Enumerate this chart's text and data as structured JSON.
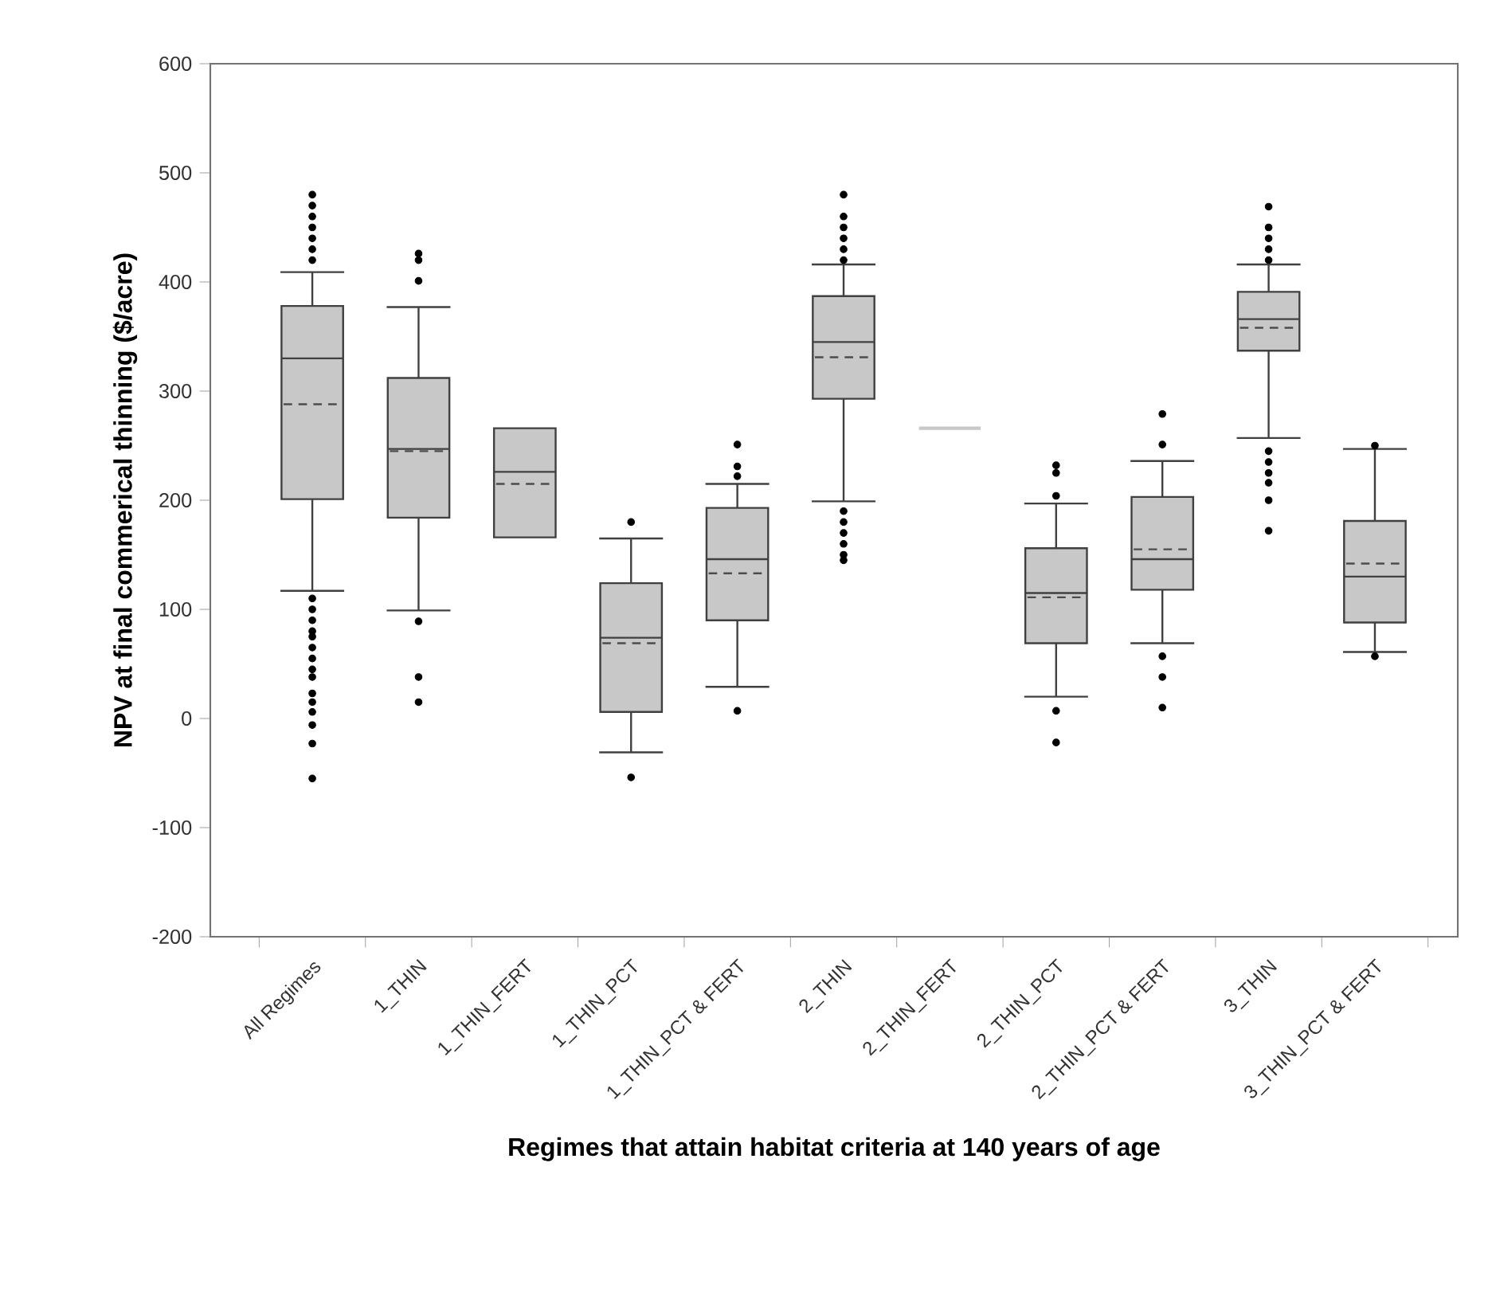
{
  "chart_data": {
    "type": "box",
    "xlabel": "Regimes that attain habitat criteria at 140 years of age",
    "ylabel": "NPV at final commerical thinning ($/acre)",
    "categories": [
      "All Regimes",
      "1_THIN",
      "1_THIN_FERT",
      "1_THIN_PCT",
      "1_THIN_PCT & FERT",
      "2_THIN",
      "2_THIN_FERT",
      "2_THIN_PCT",
      "2_THIN_PCT & FERT",
      "3_THIN",
      "3_THIN_PCT & FERT"
    ],
    "ylim": [
      -200,
      600
    ],
    "yticks": [
      -200,
      -100,
      0,
      100,
      200,
      300,
      400,
      500,
      600
    ],
    "series": [
      {
        "color": "#c8c8c8",
        "boxes": [
          {
            "low": 117,
            "q1": 201,
            "median": 330,
            "q3": 378,
            "high": 409,
            "mean": 288,
            "outliers": [
              480,
              470,
              460,
              450,
              440,
              430,
              420,
              110,
              100,
              90,
              80,
              75,
              65,
              55,
              45,
              38,
              23,
              15,
              6,
              -6,
              -23,
              -55
            ]
          },
          {
            "low": 99,
            "q1": 184,
            "median": 247,
            "q3": 312,
            "high": 377,
            "mean": 245,
            "outliers": [
              426,
              420,
              401,
              89,
              38,
              15
            ]
          },
          {
            "low": 166,
            "q1": 166,
            "median": 226,
            "q3": 266,
            "high": 266,
            "mean": 215
          },
          {
            "low": -31,
            "q1": 6,
            "median": 74,
            "q3": 124,
            "high": 165,
            "mean": 69,
            "outliers": [
              180,
              -54
            ]
          },
          {
            "low": 29,
            "q1": 90,
            "median": 146,
            "q3": 193,
            "high": 215,
            "mean": 133,
            "outliers": [
              251,
              231,
              222,
              7
            ]
          },
          {
            "low": 199,
            "q1": 293,
            "median": 345,
            "q3": 387,
            "high": 416,
            "mean": 331,
            "outliers": [
              480,
              460,
              450,
              440,
              430,
              420,
              190,
              180,
              170,
              160,
              150,
              145
            ]
          },
          {
            "low": 266,
            "q1": 266,
            "median": 266,
            "q3": 266,
            "high": 266
          },
          {
            "low": 20,
            "q1": 69,
            "median": 115,
            "q3": 156,
            "high": 197,
            "mean": 111,
            "outliers": [
              232,
              225,
              204,
              7,
              -22
            ]
          },
          {
            "low": 69,
            "q1": 118,
            "median": 146,
            "q3": 203,
            "high": 236,
            "mean": 155,
            "outliers": [
              279,
              251,
              57,
              38,
              10
            ]
          },
          {
            "low": 257,
            "q1": 337,
            "median": 366,
            "q3": 391,
            "high": 416,
            "mean": 358,
            "outliers": [
              469,
              450,
              440,
              430,
              420,
              245,
              235,
              225,
              216,
              200,
              172
            ]
          },
          {
            "low": 61,
            "q1": 88,
            "median": 130,
            "q3": 181,
            "high": 247,
            "mean": 142,
            "outliers": [
              250,
              57
            ]
          }
        ]
      }
    ]
  }
}
